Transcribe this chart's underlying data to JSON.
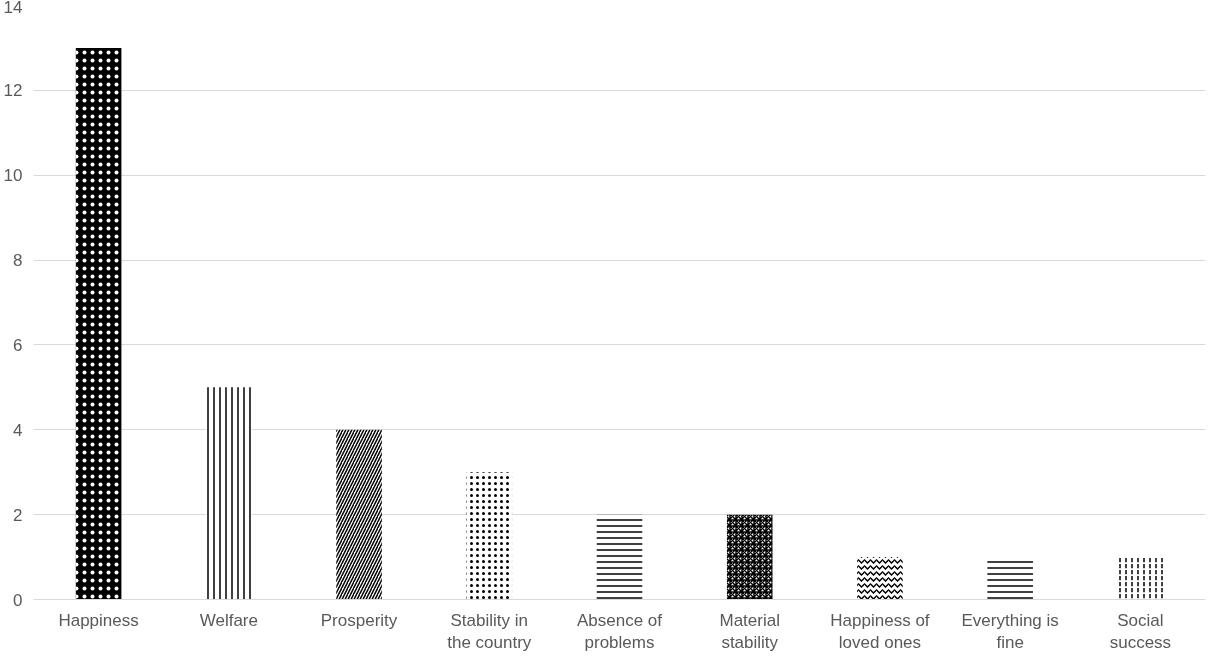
{
  "chart_data": {
    "type": "bar",
    "categories": [
      "Happiness",
      "Welfare",
      "Prosperity",
      "Stability in the country",
      "Absence of problems",
      "Material stability",
      "Happiness of loved ones",
      "Everything is fine",
      "Social success"
    ],
    "values": [
      13,
      5,
      4,
      3,
      2,
      2,
      1,
      1,
      1
    ],
    "color": "#000000",
    "ylim": [
      0,
      14
    ],
    "yticks": [
      0,
      2,
      4,
      6,
      8,
      10,
      12,
      14
    ],
    "grid": "y"
  }
}
